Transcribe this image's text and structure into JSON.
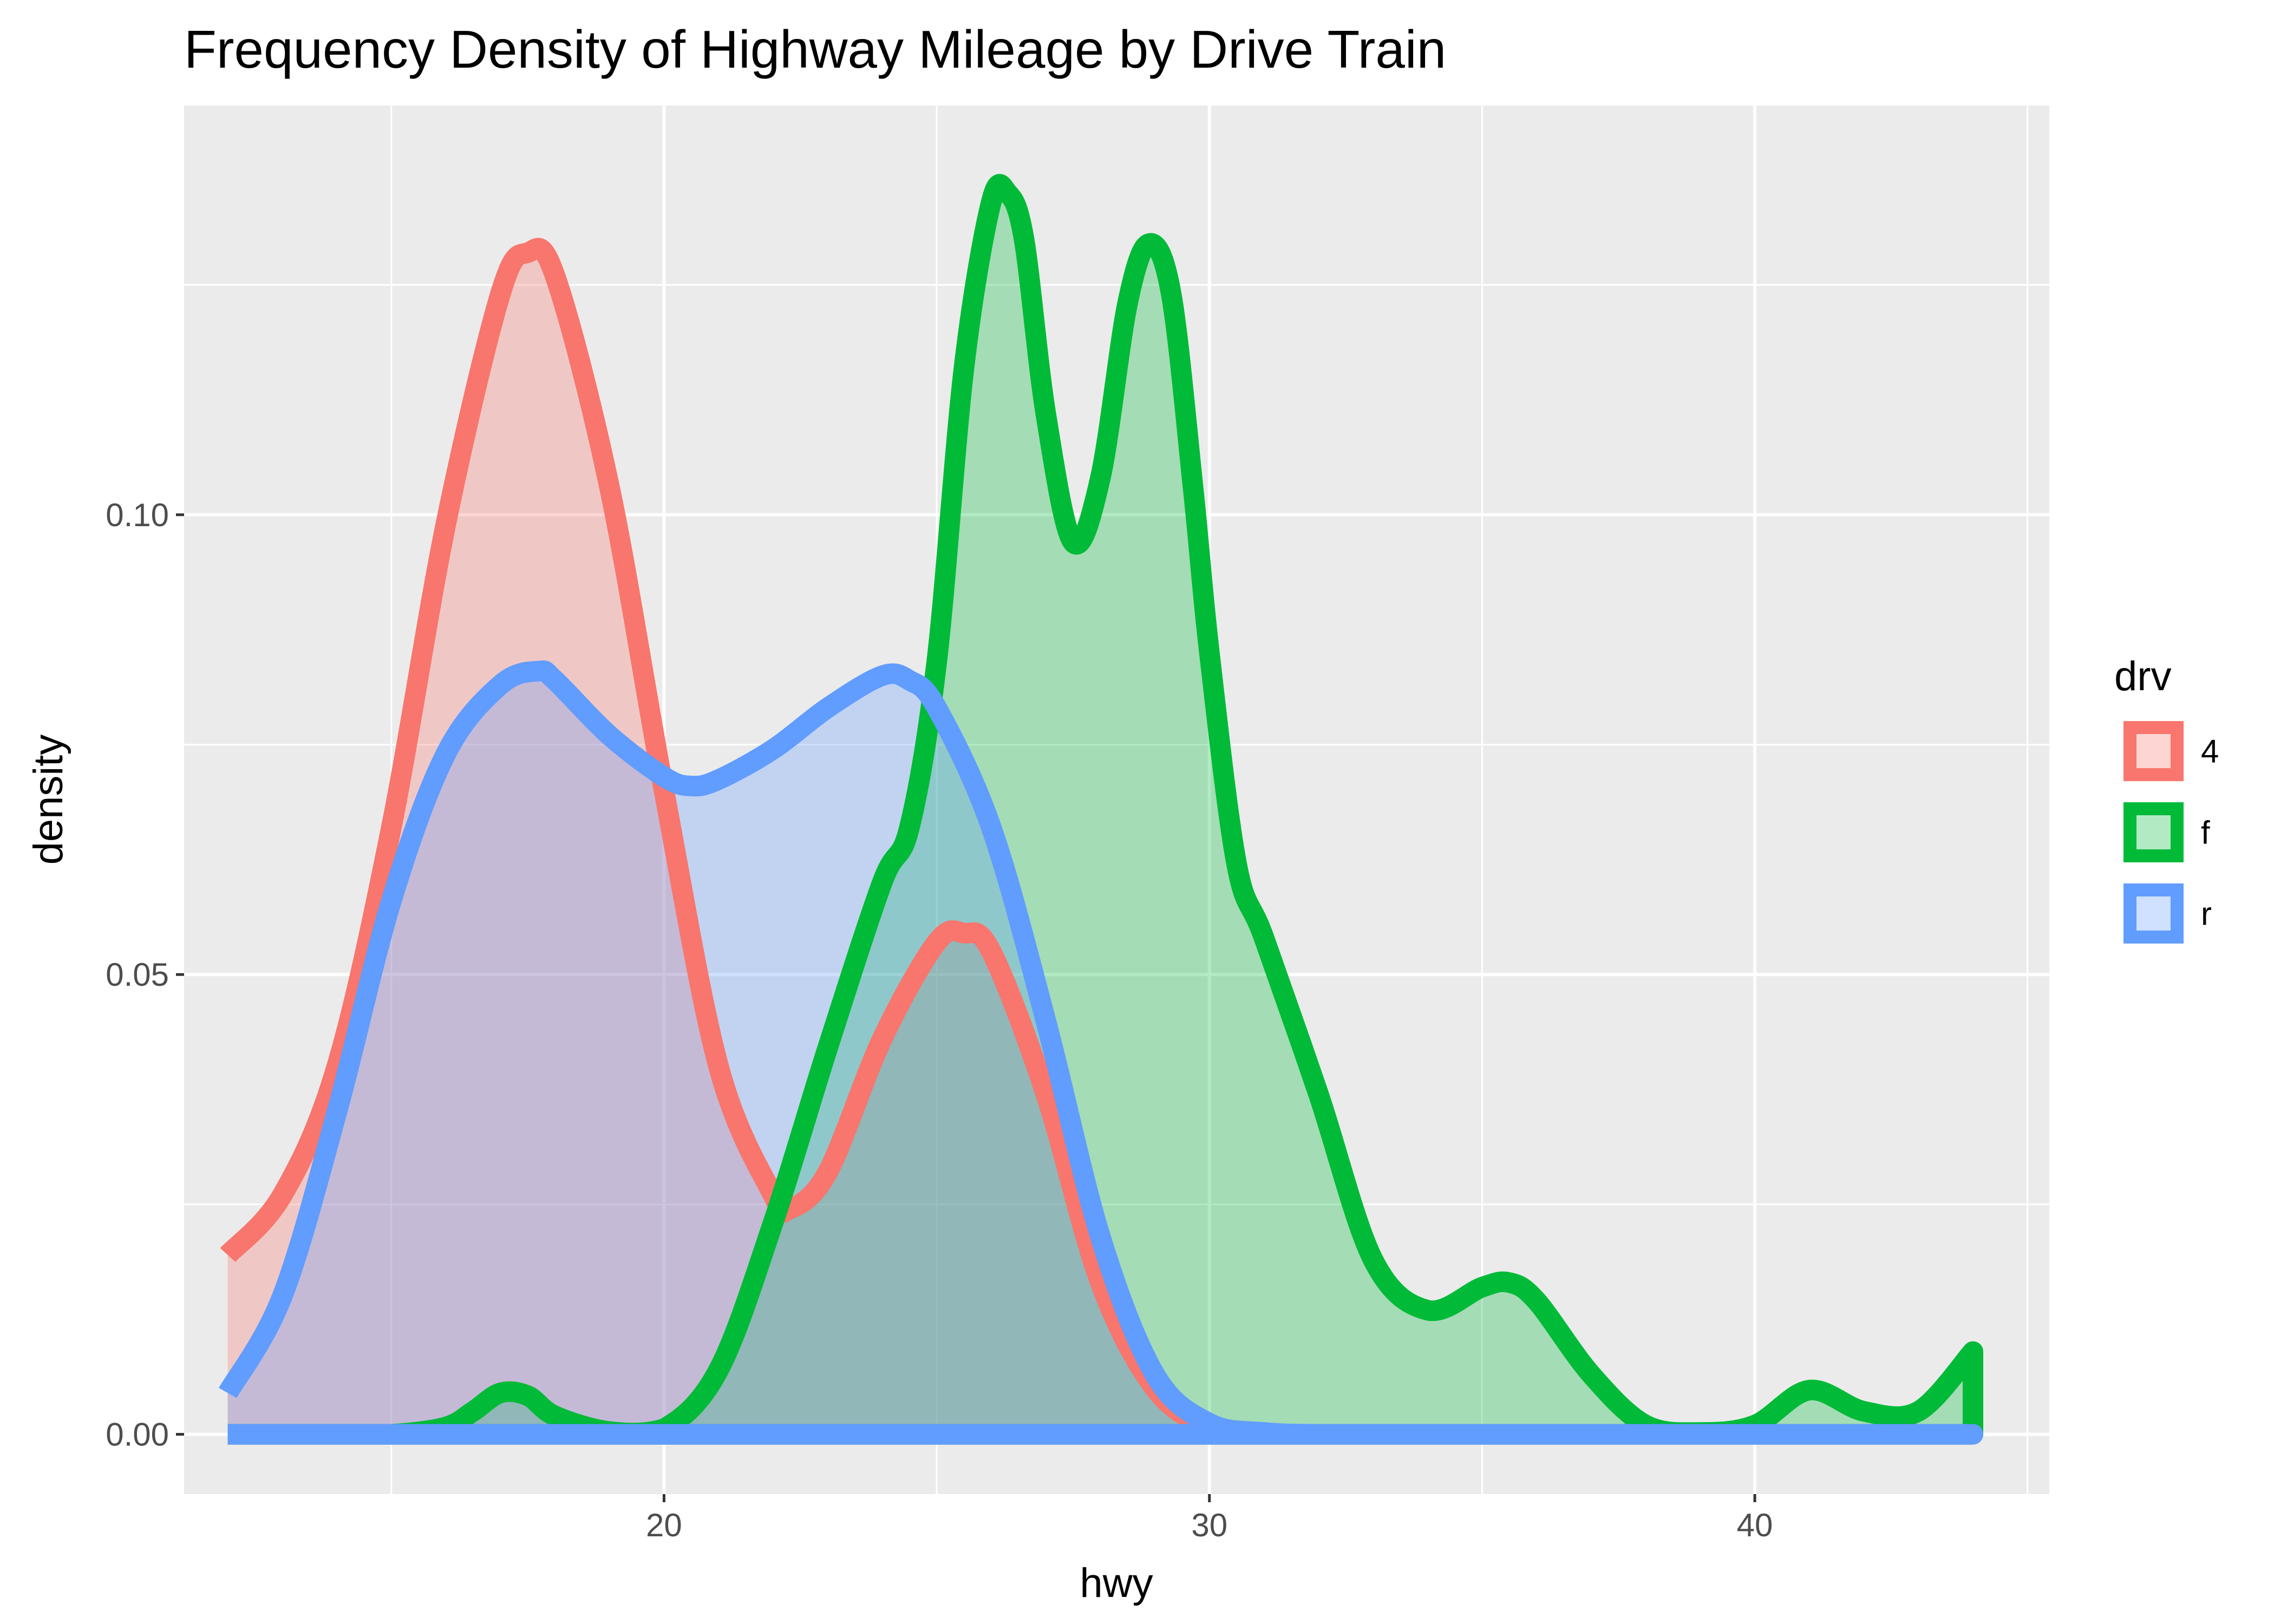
{
  "chart_data": {
    "type": "area",
    "title": "Frequency Density of Highway Mileage by Drive Train",
    "xlabel": "hwy",
    "ylabel": "density",
    "xlim": [
      11.2,
      45.4
    ],
    "ylim": [
      -0.0065,
      0.1445
    ],
    "x_ticks": [
      20,
      30,
      40
    ],
    "x_tick_labels": [
      "20",
      "30",
      "40"
    ],
    "y_ticks": [
      0.0,
      0.05,
      0.1
    ],
    "y_tick_labels": [
      "0.00",
      "0.05",
      "0.10"
    ],
    "grid": true,
    "legend": {
      "title": "drv",
      "position": "right"
    },
    "fill_opacity": 0.3,
    "series": [
      {
        "name": "4",
        "color": "#F8766D",
        "x": [
          12,
          13,
          14,
          15,
          16,
          17,
          17.5,
          18,
          19,
          20,
          21,
          22,
          22.3,
          23,
          24,
          25,
          25.5,
          26,
          27,
          28,
          29,
          30,
          31,
          32,
          33,
          34,
          35,
          36,
          37,
          38,
          39,
          40,
          41,
          42,
          43,
          44
        ],
        "values": [
          0.0195,
          0.026,
          0.04,
          0.066,
          0.099,
          0.124,
          0.1285,
          0.126,
          0.103,
          0.07,
          0.04,
          0.026,
          0.0245,
          0.0285,
          0.043,
          0.0535,
          0.0545,
          0.0525,
          0.037,
          0.0165,
          0.005,
          0.0008,
          0.0001,
          0.0,
          0.0,
          0.0,
          0.0,
          0.0,
          0.0,
          0.0,
          0.0,
          0.0,
          0.0,
          0.0,
          0.0,
          0.0
        ]
      },
      {
        "name": "f",
        "color": "#00BA38",
        "x": [
          12,
          13,
          14,
          15,
          16,
          16.5,
          17,
          17.5,
          18,
          19,
          20,
          21,
          22,
          23,
          24,
          24.5,
          25,
          25.5,
          26,
          26.3,
          26.6,
          27,
          27.5,
          28,
          28.5,
          28.9,
          29.3,
          29.7,
          30,
          30.5,
          31,
          32,
          33,
          34,
          35,
          35.5,
          36,
          37,
          38,
          39,
          40,
          41,
          42,
          43,
          44
        ],
        "values": [
          0.0,
          0.0,
          0.0,
          0.0,
          0.0008,
          0.0025,
          0.0045,
          0.0042,
          0.002,
          0.0003,
          0.0006,
          0.007,
          0.023,
          0.042,
          0.06,
          0.066,
          0.084,
          0.116,
          0.134,
          0.135,
          0.13,
          0.111,
          0.097,
          0.104,
          0.123,
          0.1295,
          0.124,
          0.103,
          0.085,
          0.062,
          0.054,
          0.037,
          0.019,
          0.0135,
          0.016,
          0.0165,
          0.0145,
          0.0065,
          0.001,
          0.0002,
          0.001,
          0.0048,
          0.0025,
          0.0025,
          0.009
        ]
      },
      {
        "name": "r",
        "color": "#619CFF",
        "x": [
          12,
          13,
          14,
          15,
          16,
          17,
          17.7,
          18,
          19,
          20,
          20.5,
          21,
          22,
          23,
          24,
          24.5,
          25,
          26,
          27,
          28,
          29,
          30,
          31,
          32,
          33,
          34,
          35,
          36,
          37,
          38,
          39,
          40,
          41,
          42,
          43,
          44
        ],
        "values": [
          0.0045,
          0.015,
          0.035,
          0.058,
          0.074,
          0.0815,
          0.083,
          0.082,
          0.076,
          0.0715,
          0.0705,
          0.0712,
          0.0745,
          0.079,
          0.0825,
          0.082,
          0.079,
          0.066,
          0.045,
          0.0215,
          0.0065,
          0.0012,
          0.0002,
          0.0,
          0.0,
          0.0,
          0.0,
          0.0,
          0.0,
          0.0,
          0.0,
          0.0,
          0.0,
          0.0,
          0.0,
          0.0
        ]
      }
    ]
  }
}
